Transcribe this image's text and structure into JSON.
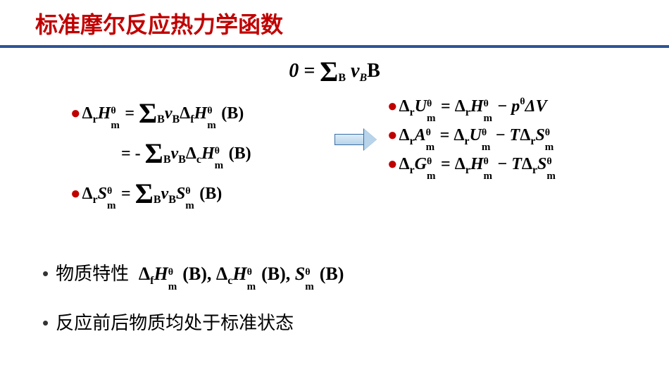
{
  "title": {
    "text": "标准摩尔反应热力学函数",
    "color": "#c00000"
  },
  "title_underline_color": "#2f5496",
  "top_equation": {
    "lhs": "0 =",
    "sum": "Σ",
    "sub": "B",
    "nu": "ν",
    "nusub": "B",
    "B": "B"
  },
  "left": {
    "l1": {
      "delta": "Δ",
      "r": "r",
      "H": "H",
      "theta": "θ",
      "m": "m",
      "eq": " = ",
      "sum": "Σ",
      "B": "B",
      "nu": "ν",
      "nuB": "B",
      "d2": "Δ",
      "f": "f",
      "H2": "H",
      "th2": "θ",
      "m2": "m",
      "tail": " (B)"
    },
    "l2": {
      "eq": "= - ",
      "sum": "Σ",
      "B": "B",
      "nu": "ν",
      "nuB": "B",
      "d2": "Δ",
      "c": "c",
      "H2": "H",
      "th2": "θ",
      "m2": "m",
      "tail": " (B)"
    },
    "l3": {
      "delta": "Δ",
      "r": "r",
      "S": "S",
      "theta": "θ",
      "m": "m",
      "eq": " = ",
      "sum": "Σ",
      "B": "B",
      "nu": "ν",
      "nuB": "B",
      "S2": "S",
      "th2": "θ",
      "m2": "m",
      "tail": " (B)"
    }
  },
  "right": {
    "r1": {
      "lhs": "Δ",
      "r": "r",
      "U": "U",
      "th": "θ",
      "m": "m",
      "eq": " = ",
      "d2": "Δ",
      "r2": "r",
      "H": "H",
      "th2": "θ",
      "m2": "m",
      "minus": " − ",
      "p": "p",
      "pth": "θ",
      "dV": "ΔV"
    },
    "r2": {
      "lhs": "Δ",
      "r": "r",
      "A": "A",
      "th": "θ",
      "m": "m",
      "eq": " = ",
      "d2": "Δ",
      "r2": "r",
      "U": "U",
      "th2": "θ",
      "m2": "m",
      "minus": " − ",
      "T": "T",
      "d3": "Δ",
      "r3": "r",
      "S": "S",
      "th3": "θ",
      "m3": "m"
    },
    "r3": {
      "lhs": "Δ",
      "r": "r",
      "G": "G",
      "th": "θ",
      "m": "m",
      "eq": " = ",
      "d2": "Δ",
      "r2": "r",
      "H": "H",
      "th2": "θ",
      "m2": "m",
      "minus": " − ",
      "T": "T",
      "d3": "Δ",
      "r3": "r",
      "S": "S",
      "th3": "θ",
      "m3": "m"
    }
  },
  "lower1": {
    "label": "物质特性",
    "m": {
      "d1": "Δ",
      "f": "f",
      "H": "H",
      "th": "θ",
      "m": "m",
      "b1": " (B), ",
      "d2": "Δ",
      "c": "c",
      "H2": "H",
      "th2": "θ",
      "m2": "m",
      "b2": " (B), ",
      "S": "S",
      "th3": "θ",
      "m3": "m",
      "b3": " (B)"
    }
  },
  "lower2": {
    "text": "反应前后物质均处于标准状态"
  }
}
